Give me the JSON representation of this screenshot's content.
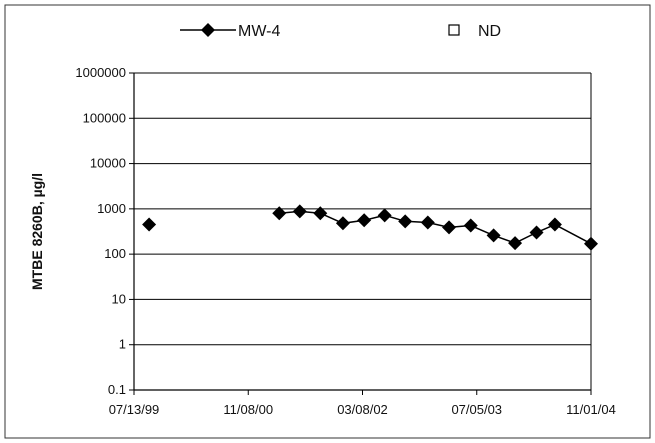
{
  "chart_data": {
    "type": "line",
    "title": "",
    "ylabel": "MTBE 8260B, µg/l",
    "xlabel": "",
    "yscale": "log",
    "ylim": [
      0.1,
      1000000
    ],
    "xlim": [
      "1999-07-13",
      "2004-11-01"
    ],
    "grid": "horizontal major gridlines",
    "legend_position": "top",
    "y_ticks": [
      "1000000",
      "100000",
      "10000",
      "1000",
      "100",
      "10",
      "1",
      "0.1"
    ],
    "x_ticks": [
      "07/13/99",
      "11/08/00",
      "03/08/02",
      "07/05/03",
      "11/01/04"
    ],
    "series": [
      {
        "name": "MW-4",
        "marker": "diamond",
        "color": "#000000",
        "segments": [
          [
            {
              "x": "1999-09-15",
              "y": 450
            }
          ],
          [
            {
              "x": "2001-03-20",
              "y": 800
            },
            {
              "x": "2001-06-15",
              "y": 880
            },
            {
              "x": "2001-09-10",
              "y": 800
            },
            {
              "x": "2001-12-15",
              "y": 480
            },
            {
              "x": "2002-03-15",
              "y": 560
            },
            {
              "x": "2002-06-10",
              "y": 720
            },
            {
              "x": "2002-09-05",
              "y": 530
            },
            {
              "x": "2002-12-10",
              "y": 500
            },
            {
              "x": "2003-03-10",
              "y": 390
            },
            {
              "x": "2003-06-10",
              "y": 430
            },
            {
              "x": "2003-09-15",
              "y": 260
            },
            {
              "x": "2003-12-15",
              "y": 175
            },
            {
              "x": "2004-03-15",
              "y": 300
            },
            {
              "x": "2004-06-01",
              "y": 450
            },
            {
              "x": "2004-11-01",
              "y": 170
            }
          ]
        ]
      },
      {
        "name": "ND",
        "marker": "open-square",
        "color": "#000000",
        "segments": []
      }
    ]
  }
}
